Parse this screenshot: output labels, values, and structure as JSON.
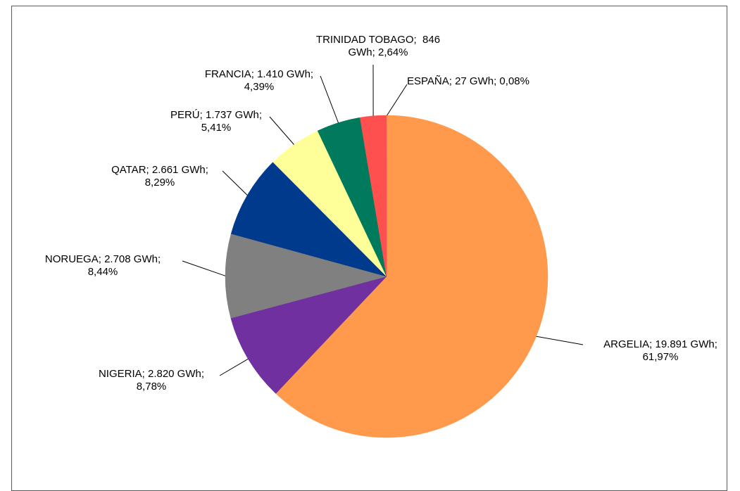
{
  "chart_data": {
    "type": "pie",
    "title": "",
    "unit": "GWh",
    "slices": [
      {
        "label": "ESPAÑA",
        "value": 27,
        "percent": "0,08%",
        "color": "#FFC000",
        "label_lines": [
          "ESPAÑA; 27 GWh; 0,08%"
        ]
      },
      {
        "label": "ARGELIA",
        "value": 19891,
        "percent": "61,97%",
        "color": "#FF9A4C",
        "label_lines": [
          "ARGELIA; 19.891 GWh;",
          "61,97%"
        ]
      },
      {
        "label": "NIGERIA",
        "value": 2820,
        "percent": "8,78%",
        "color": "#7030A0",
        "label_lines": [
          "NIGERIA; 2.820 GWh;",
          "8,78%"
        ]
      },
      {
        "label": "NORUEGA",
        "value": 2708,
        "percent": "8,44%",
        "color": "#808080",
        "label_lines": [
          "NORUEGA; 2.708 GWh;",
          "8,44%"
        ]
      },
      {
        "label": "QATAR",
        "value": 2661,
        "percent": "8,29%",
        "color": "#003A8C",
        "label_lines": [
          "QATAR; 2.661 GWh;",
          "8,29%"
        ]
      },
      {
        "label": "PERÚ",
        "value": 1737,
        "percent": "5,41%",
        "color": "#FFFF99",
        "label_lines": [
          "PERÚ; 1.737 GWh;",
          "5,41%"
        ]
      },
      {
        "label": "FRANCIA",
        "value": 1410,
        "percent": "4,39%",
        "color": "#007A5C",
        "label_lines": [
          "FRANCIA; 1.410 GWh;",
          "4,39%"
        ]
      },
      {
        "label": "TRINIDAD TOBAGO",
        "value": 846,
        "percent": "2,64%",
        "color": "#FF5050",
        "label_lines": [
          "TRINIDAD TOBAGO;  846",
          "GWh; 2,64%"
        ]
      }
    ]
  }
}
